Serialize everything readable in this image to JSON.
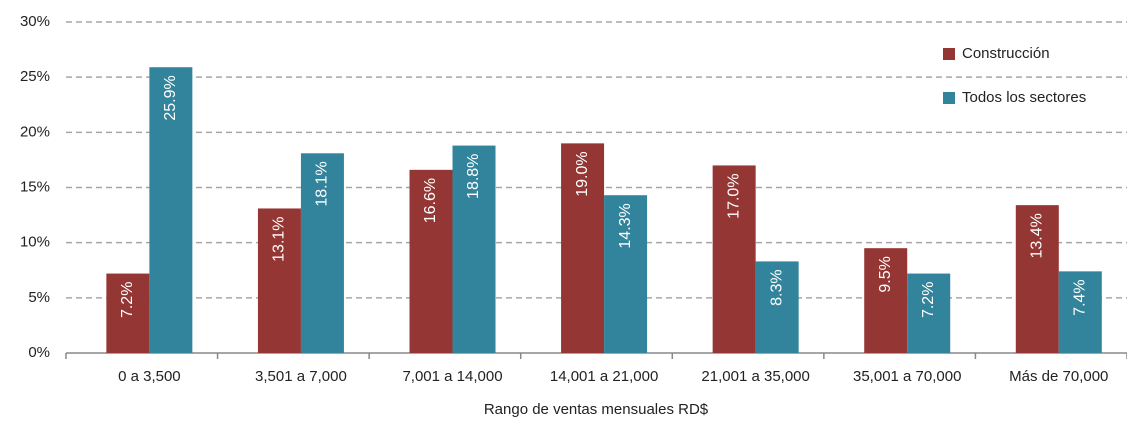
{
  "chart_data": {
    "type": "bar",
    "x_label": "Rango de ventas mensuales RD$",
    "categories": [
      "0 a 3,500",
      "3,501 a 7,000",
      "7,001 a 14,000",
      "14,001 a 21,000",
      "21,001 a 35,000",
      "35,001 a 70,000",
      "Más de 70,000"
    ],
    "series": [
      {
        "name": "Construcción",
        "color": "#943634",
        "values": [
          7.2,
          13.1,
          16.6,
          19.0,
          17.0,
          9.5,
          13.4
        ],
        "value_labels": [
          "7.2%",
          "13.1%",
          "16.6%",
          "19.0%",
          "17.0%",
          "9.5%",
          "13.4%"
        ]
      },
      {
        "name": "Todos los sectores",
        "color": "#31849b",
        "values": [
          25.9,
          18.1,
          18.8,
          14.3,
          8.3,
          7.2,
          7.4
        ],
        "value_labels": [
          "25.9%",
          "18.1%",
          "18.8%",
          "14.3%",
          "8.3%",
          "7.2%",
          "7.4%"
        ]
      }
    ],
    "ylim": [
      0,
      30
    ],
    "yticks": [
      {
        "value": 0,
        "label": "0%"
      },
      {
        "value": 5,
        "label": "5%"
      },
      {
        "value": 10,
        "label": "10%"
      },
      {
        "value": 15,
        "label": "15%"
      },
      {
        "value": 20,
        "label": "20%"
      },
      {
        "value": 25,
        "label": "25%"
      },
      {
        "value": 30,
        "label": "30%"
      }
    ],
    "grid": true,
    "legend": "top-right"
  }
}
